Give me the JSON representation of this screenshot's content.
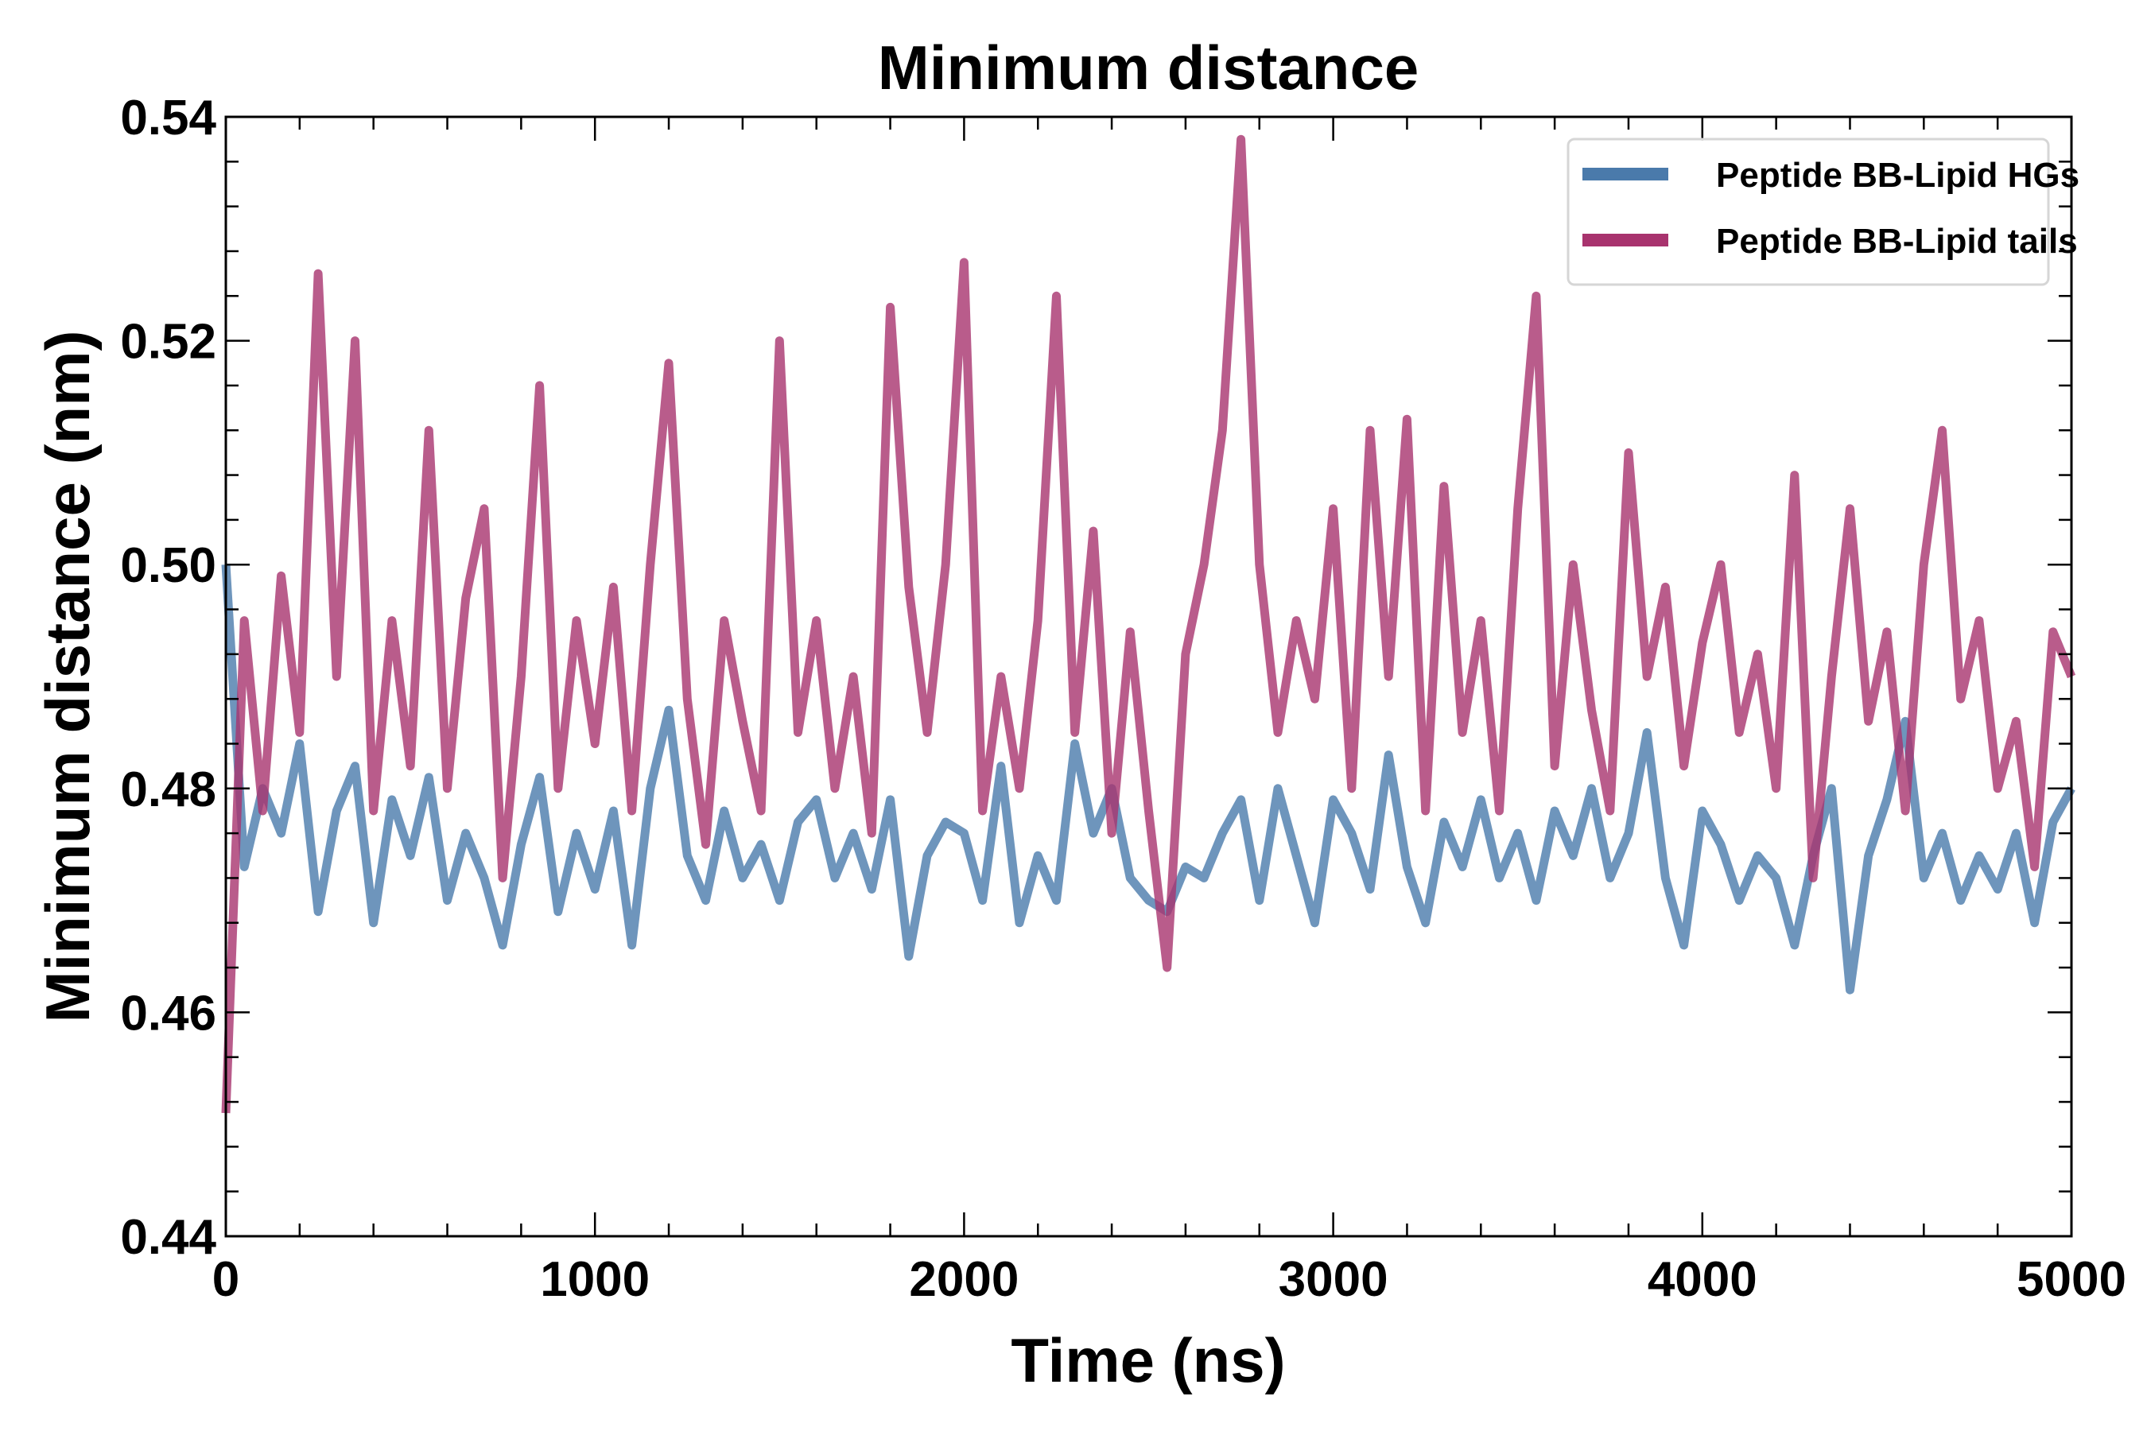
{
  "chart_data": {
    "type": "line",
    "title": "Minimum distance",
    "xlabel": "Time (ns)",
    "ylabel": "Minimum distance (nm)",
    "xlim": [
      0,
      5000
    ],
    "ylim": [
      0.44,
      0.54
    ],
    "xticks": [
      "0",
      "1000",
      "2000",
      "3000",
      "4000",
      "5000"
    ],
    "yticks": [
      "0.44",
      "0.46",
      "0.48",
      "0.50",
      "0.52",
      "0.54"
    ],
    "grid": false,
    "legend_placement": "top-right",
    "x_step": 50,
    "series": [
      {
        "name": "Peptide BB-Lipid HGs",
        "color": "#4a7aab",
        "values": [
          0.5,
          0.473,
          0.48,
          0.476,
          0.484,
          0.469,
          0.478,
          0.482,
          0.468,
          0.479,
          0.474,
          0.481,
          0.47,
          0.476,
          0.472,
          0.466,
          0.475,
          0.481,
          0.469,
          0.476,
          0.471,
          0.478,
          0.466,
          0.48,
          0.487,
          0.474,
          0.47,
          0.478,
          0.472,
          0.475,
          0.47,
          0.477,
          0.479,
          0.472,
          0.476,
          0.471,
          0.479,
          0.465,
          0.474,
          0.477,
          0.476,
          0.47,
          0.482,
          0.468,
          0.474,
          0.47,
          0.484,
          0.476,
          0.48,
          0.472,
          0.47,
          0.469,
          0.473,
          0.472,
          0.476,
          0.479,
          0.47,
          0.48,
          0.474,
          0.468,
          0.479,
          0.476,
          0.471,
          0.483,
          0.473,
          0.468,
          0.477,
          0.473,
          0.479,
          0.472,
          0.476,
          0.47,
          0.478,
          0.474,
          0.48,
          0.472,
          0.476,
          0.485,
          0.472,
          0.466,
          0.478,
          0.475,
          0.47,
          0.474,
          0.472,
          0.466,
          0.474,
          0.48,
          0.462,
          0.474,
          0.479,
          0.486,
          0.472,
          0.476,
          0.47,
          0.474,
          0.471,
          0.476,
          0.468,
          0.477,
          0.48
        ]
      },
      {
        "name": "Peptide BB-Lipid tails",
        "color": "#a8336e",
        "values": [
          0.451,
          0.495,
          0.478,
          0.499,
          0.485,
          0.526,
          0.49,
          0.52,
          0.478,
          0.495,
          0.482,
          0.512,
          0.48,
          0.497,
          0.505,
          0.472,
          0.49,
          0.516,
          0.48,
          0.495,
          0.484,
          0.498,
          0.478,
          0.5,
          0.518,
          0.488,
          0.475,
          0.495,
          0.486,
          0.478,
          0.52,
          0.485,
          0.495,
          0.48,
          0.49,
          0.476,
          0.523,
          0.498,
          0.485,
          0.5,
          0.527,
          0.478,
          0.49,
          0.48,
          0.495,
          0.524,
          0.485,
          0.503,
          0.476,
          0.494,
          0.478,
          0.464,
          0.492,
          0.5,
          0.512,
          0.538,
          0.5,
          0.485,
          0.495,
          0.488,
          0.505,
          0.48,
          0.512,
          0.49,
          0.513,
          0.478,
          0.507,
          0.485,
          0.495,
          0.478,
          0.505,
          0.524,
          0.482,
          0.5,
          0.487,
          0.478,
          0.51,
          0.49,
          0.498,
          0.482,
          0.493,
          0.5,
          0.485,
          0.492,
          0.48,
          0.508,
          0.472,
          0.49,
          0.505,
          0.486,
          0.494,
          0.478,
          0.5,
          0.512,
          0.488,
          0.495,
          0.48,
          0.486,
          0.473,
          0.494,
          0.49
        ]
      }
    ]
  }
}
